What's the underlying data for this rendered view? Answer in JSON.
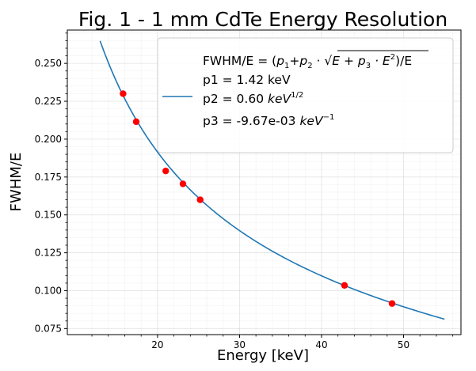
{
  "chart_data": {
    "type": "scatter",
    "title": "Fig. 1 - 1 mm CdTe Energy Resolution",
    "xlabel": "Energy [keV]",
    "ylabel": "FWHM/E",
    "xlim": [
      9.0,
      57.0
    ],
    "ylim": [
      0.071,
      0.272
    ],
    "x_ticks": [
      20,
      30,
      40,
      50
    ],
    "y_ticks": [
      0.075,
      0.1,
      0.125,
      0.15,
      0.175,
      0.2,
      0.225,
      0.25
    ],
    "x_tick_labels": [
      "20",
      "30",
      "40",
      "50"
    ],
    "y_tick_labels": [
      "0.075",
      "0.100",
      "0.125",
      "0.150",
      "0.175",
      "0.200",
      "0.225",
      "0.250"
    ],
    "grid": true,
    "legend_position": "top-right",
    "colors": {
      "fit": "#1f77b4",
      "points": "#ff0000"
    },
    "points": {
      "x": [
        15.8,
        17.4,
        21.0,
        23.1,
        25.2,
        42.8,
        48.6
      ],
      "y": [
        0.23,
        0.2115,
        0.179,
        0.1705,
        0.16,
        0.1035,
        0.0915
      ]
    },
    "fit": {
      "x_range": [
        13.0,
        55.0
      ],
      "params": {
        "p1": 1.42,
        "p2": 0.6,
        "p3": -0.00967
      }
    },
    "legend": {
      "formula_prefix": "FWHM/E = (",
      "formula_p1": "p",
      "formula_p1_sub": "1",
      "formula_plus": "+",
      "formula_p2": "p",
      "formula_p2_sub": "2",
      "formula_dot": " · ",
      "formula_sqrt_body": "E + p",
      "formula_p3_sub": "3",
      "formula_sqrt_tail": " · E",
      "formula_sq": "2",
      "formula_suffix": ")/E",
      "line_p1": "p1 = 1.42 keV",
      "line_p2": "p2 = 0.60 ",
      "line_p2_unit": "keV",
      "line_p2_exp": "1/2",
      "line_p3": "p3 = -9.67e-03 ",
      "line_p3_unit": "keV",
      "line_p3_exp": "−1"
    }
  }
}
